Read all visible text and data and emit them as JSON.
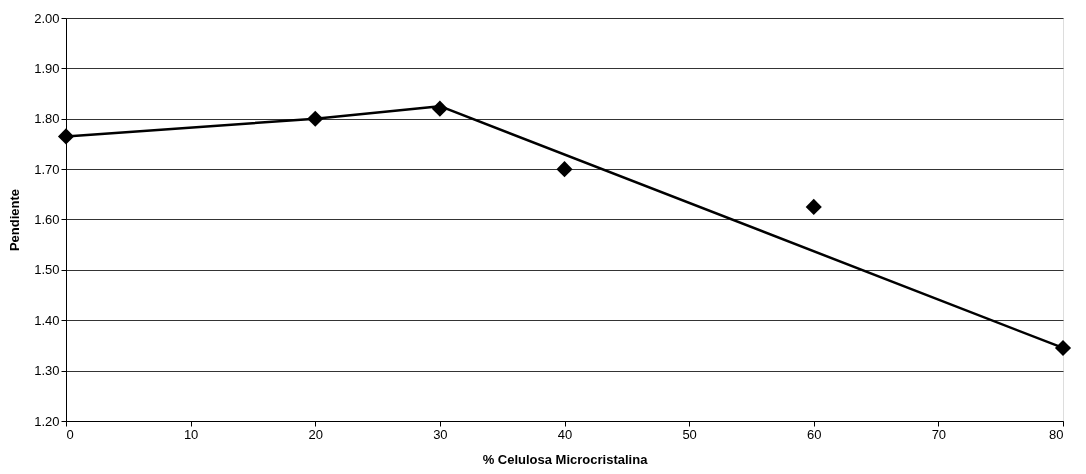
{
  "chart_data": {
    "type": "scatter",
    "xlabel": "% Celulosa Microcristalina",
    "ylabel": "Pendiente",
    "xlim": [
      0,
      80
    ],
    "xticks": [
      0,
      10,
      20,
      30,
      40,
      50,
      60,
      70,
      80
    ],
    "ylim": [
      1.2,
      2.0
    ],
    "yticks": [
      {
        "value": 1.2,
        "label": "1.20"
      },
      {
        "value": 1.3,
        "label": "1.30"
      },
      {
        "value": 1.4,
        "label": "1.40"
      },
      {
        "value": 1.5,
        "label": "1.50"
      },
      {
        "value": 1.6,
        "label": "1.60"
      },
      {
        "value": 1.7,
        "label": "1.70"
      },
      {
        "value": 1.8,
        "label": "1.80"
      },
      {
        "value": 1.9,
        "label": "1.90"
      },
      {
        "value": 2.0,
        "label": "2.00"
      }
    ],
    "grid": "y",
    "legend": false,
    "marker": "diamond",
    "series": [
      {
        "color": "#000000",
        "x": [
          0,
          20,
          30,
          40,
          60,
          80
        ],
        "values": [
          1.765,
          1.8,
          1.82,
          1.7,
          1.625,
          1.345
        ]
      },
      {
        "type": "line",
        "color": "#000000",
        "marker": "none",
        "line_style": "solid",
        "x": [
          0,
          20,
          30,
          80
        ],
        "values": [
          1.765,
          1.8,
          1.825,
          1.345
        ]
      }
    ]
  }
}
